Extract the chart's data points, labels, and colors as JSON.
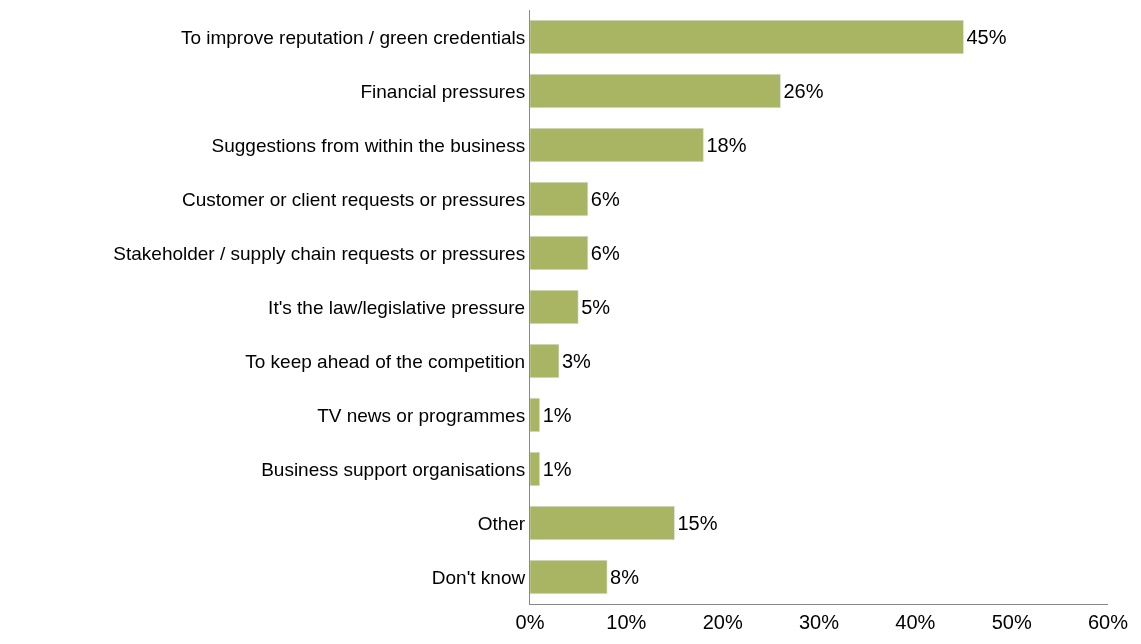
{
  "chart_data": {
    "type": "bar",
    "orientation": "horizontal",
    "categories": [
      "To improve reputation / green credentials",
      "Financial pressures",
      "Suggestions from within the business",
      "Customer or client requests or pressures",
      "Stakeholder / supply chain requests or pressures",
      "It's the law/legislative pressure",
      "To keep ahead of the competition",
      "TV news or programmes",
      "Business support organisations",
      "Other",
      "Don't know"
    ],
    "values": [
      45,
      26,
      18,
      6,
      6,
      5,
      3,
      1,
      1,
      15,
      8
    ],
    "value_labels": [
      "45%",
      "26%",
      "18%",
      "6%",
      "6%",
      "5%",
      "3%",
      "1%",
      "1%",
      "15%",
      "8%"
    ],
    "color": "#a9b562",
    "xlim": [
      0,
      60
    ],
    "xticks": [
      {
        "value": 0,
        "label": "0%"
      },
      {
        "value": 10,
        "label": "10%"
      },
      {
        "value": 20,
        "label": "20%"
      },
      {
        "value": 30,
        "label": "30%"
      },
      {
        "value": 40,
        "label": "40%"
      },
      {
        "value": 50,
        "label": "50%"
      },
      {
        "value": 60,
        "label": "60%"
      }
    ],
    "data_labels": false
  }
}
